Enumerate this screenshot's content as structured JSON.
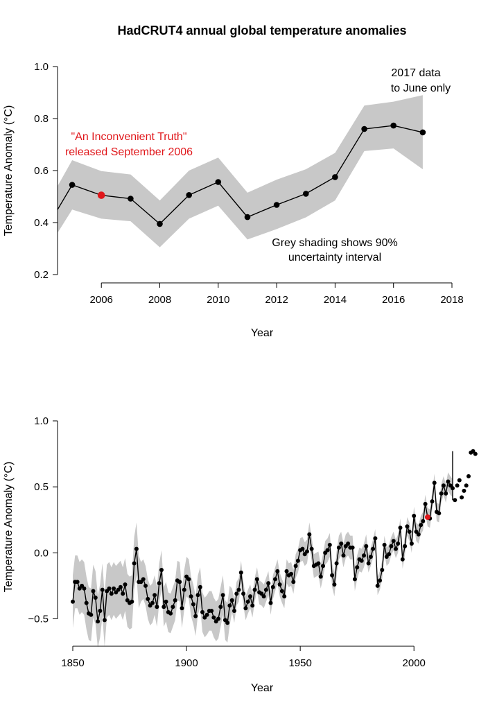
{
  "title": "HadCRUT4 annual global temperature anomalies",
  "colors": {
    "band": "#c8c8c8",
    "line": "#000000",
    "highlight": "#e0171b"
  },
  "chart_data": [
    {
      "type": "line",
      "xlabel": "Year",
      "ylabel": "Temperature Anomaly (°C)",
      "xlim": [
        2004.5,
        2018
      ],
      "ylim": [
        0.2,
        1.0
      ],
      "x_ticks": [
        "2006",
        "2008",
        "2010",
        "2012",
        "2014",
        "2016",
        "2018"
      ],
      "y_ticks": [
        "0.2",
        "0.4",
        "0.6",
        "0.8",
        "1.0"
      ],
      "band_label": "90% uncertainty interval",
      "highlight_year": 2006,
      "annotations": {
        "release_line1": "\"An Inconvenient Truth\"",
        "release_line2": "released September 2006",
        "partial_line1": "2017 data",
        "partial_line2": "to June only",
        "shading_line1": "Grey shading shows 90%",
        "shading_line2": "uncertainty interval"
      },
      "x": [
        2004,
        2005,
        2006,
        2007,
        2008,
        2009,
        2010,
        2011,
        2012,
        2013,
        2014,
        2015,
        2016,
        2017
      ],
      "y": [
        0.45,
        0.545,
        0.505,
        0.492,
        0.395,
        0.506,
        0.556,
        0.421,
        0.468,
        0.511,
        0.575,
        0.76,
        0.773,
        0.747
      ],
      "lower": [
        0.36,
        0.45,
        0.415,
        0.405,
        0.305,
        0.415,
        0.465,
        0.335,
        0.375,
        0.42,
        0.485,
        0.675,
        0.685,
        0.605
      ],
      "upper": [
        0.54,
        0.64,
        0.598,
        0.585,
        0.485,
        0.6,
        0.65,
        0.515,
        0.565,
        0.605,
        0.668,
        0.85,
        0.865,
        0.89
      ]
    },
    {
      "type": "line",
      "xlabel": "Year",
      "ylabel": "Temperature Anomaly (°C)",
      "xlim": [
        1850,
        2017
      ],
      "ylim": [
        -0.65,
        1.0
      ],
      "x_ticks": [
        "1850",
        "1900",
        "1950",
        "2000"
      ],
      "y_ticks": [
        "−0.5",
        "0.0",
        "0.5",
        "1.0"
      ],
      "highlight_year": 2006,
      "x_start": 1850,
      "y": [
        -0.37,
        -0.22,
        -0.22,
        -0.27,
        -0.25,
        -0.27,
        -0.38,
        -0.46,
        -0.47,
        -0.29,
        -0.34,
        -0.52,
        -0.44,
        -0.28,
        -0.51,
        -0.29,
        -0.27,
        -0.31,
        -0.27,
        -0.3,
        -0.28,
        -0.26,
        -0.31,
        -0.24,
        -0.36,
        -0.38,
        -0.37,
        -0.08,
        0.03,
        -0.22,
        -0.22,
        -0.2,
        -0.25,
        -0.35,
        -0.4,
        -0.38,
        -0.32,
        -0.41,
        -0.23,
        -0.13,
        -0.41,
        -0.37,
        -0.45,
        -0.46,
        -0.41,
        -0.36,
        -0.21,
        -0.22,
        -0.42,
        -0.28,
        -0.18,
        -0.2,
        -0.33,
        -0.39,
        -0.48,
        -0.32,
        -0.26,
        -0.45,
        -0.49,
        -0.47,
        -0.44,
        -0.44,
        -0.49,
        -0.52,
        -0.5,
        -0.41,
        -0.32,
        -0.51,
        -0.53,
        -0.4,
        -0.36,
        -0.44,
        -0.31,
        -0.28,
        -0.15,
        -0.31,
        -0.42,
        -0.37,
        -0.33,
        -0.4,
        -0.28,
        -0.2,
        -0.3,
        -0.31,
        -0.33,
        -0.28,
        -0.23,
        -0.38,
        -0.26,
        -0.2,
        -0.14,
        -0.24,
        -0.29,
        -0.33,
        -0.14,
        -0.17,
        -0.16,
        -0.22,
        -0.1,
        -0.06,
        0.02,
        0.03,
        -0.01,
        0.01,
        0.14,
        0.03,
        -0.1,
        -0.09,
        -0.08,
        -0.18,
        -0.1,
        0.0,
        0.02,
        0.06,
        -0.17,
        -0.24,
        -0.08,
        0.04,
        0.07,
        -0.02,
        0.05,
        0.07,
        0.04,
        0.04,
        -0.2,
        -0.11,
        -0.05,
        -0.06,
        -0.02,
        0.05,
        -0.08,
        -0.03,
        0.03,
        0.11,
        -0.25,
        -0.21,
        -0.13,
        0.06,
        -0.03,
        -0.01,
        0.05,
        0.09,
        0.03,
        0.07,
        0.19,
        -0.05,
        0.05,
        0.2,
        0.16,
        0.07,
        0.28,
        0.16,
        0.14,
        0.21,
        0.24,
        0.37,
        0.27,
        0.26,
        0.39,
        0.53,
        0.31,
        0.3,
        0.45,
        0.51,
        0.45,
        0.54,
        0.51,
        0.49,
        0.4,
        0.51,
        0.55,
        0.42,
        0.47,
        0.51,
        0.58,
        0.76,
        0.77,
        0.75
      ]
    }
  ]
}
